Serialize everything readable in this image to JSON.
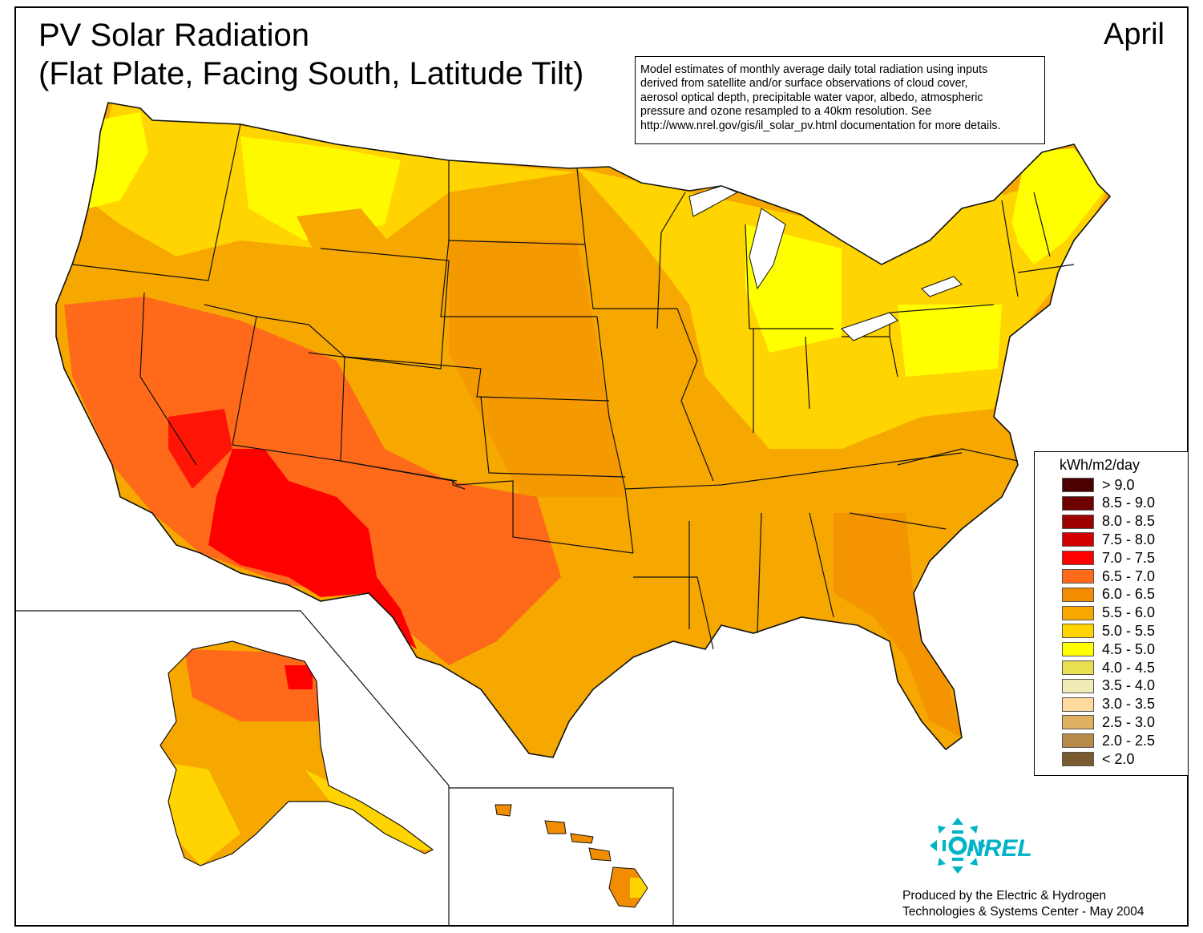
{
  "map": {
    "title_line1": "PV Solar Radiation",
    "title_line2": "(Flat Plate, Facing South, Latitude Tilt)",
    "month": "April",
    "note_lines": [
      "Model estimates of monthly average daily total radiation using inputs",
      "derived from satellite and/or surface observations of cloud cover,",
      "aerosol optical depth, precipitable water vapor, albedo, atmospheric",
      "pressure and ozone resampled to a 40km resolution.  See",
      "http://www.nrel.gov/gis/il_solar_pv.html documentation for more details."
    ],
    "regions": {
      "conus": "contiguous-us",
      "alaska": "alaska-inset",
      "hawaii": "hawaii-inset"
    }
  },
  "legend": {
    "title": "kWh/m2/day",
    "classes": [
      {
        "label": "> 9.0",
        "color": "#4d0000"
      },
      {
        "label": "8.5 - 9.0",
        "color": "#6e0000"
      },
      {
        "label": "8.0 - 8.5",
        "color": "#9e0000"
      },
      {
        "label": "7.5 - 8.0",
        "color": "#d40000"
      },
      {
        "label": "7.0 - 7.5",
        "color": "#ff0000"
      },
      {
        "label": "6.5 - 7.0",
        "color": "#ff6a1a"
      },
      {
        "label": "6.0 - 6.5",
        "color": "#f28c00"
      },
      {
        "label": "5.5 - 6.0",
        "color": "#f7a800"
      },
      {
        "label": "5.0 - 5.5",
        "color": "#ffd400"
      },
      {
        "label": "4.5 - 5.0",
        "color": "#ffff00"
      },
      {
        "label": "4.0 - 4.5",
        "color": "#e8e050"
      },
      {
        "label": "3.5 - 4.0",
        "color": "#f0ecb8"
      },
      {
        "label": "3.0 - 3.5",
        "color": "#ffd9a0"
      },
      {
        "label": "2.5 - 3.0",
        "color": "#deb060"
      },
      {
        "label": "2.0 - 2.5",
        "color": "#b88a48"
      },
      {
        "label": "< 2.0",
        "color": "#7a5c30"
      }
    ]
  },
  "logo": {
    "text": "NREL",
    "icon": "nrel-logo-icon",
    "color": "#00b4c8"
  },
  "credit": {
    "line1": "Produced by the Electric & Hydrogen",
    "line2": "Technologies & Systems Center - May 2004"
  }
}
